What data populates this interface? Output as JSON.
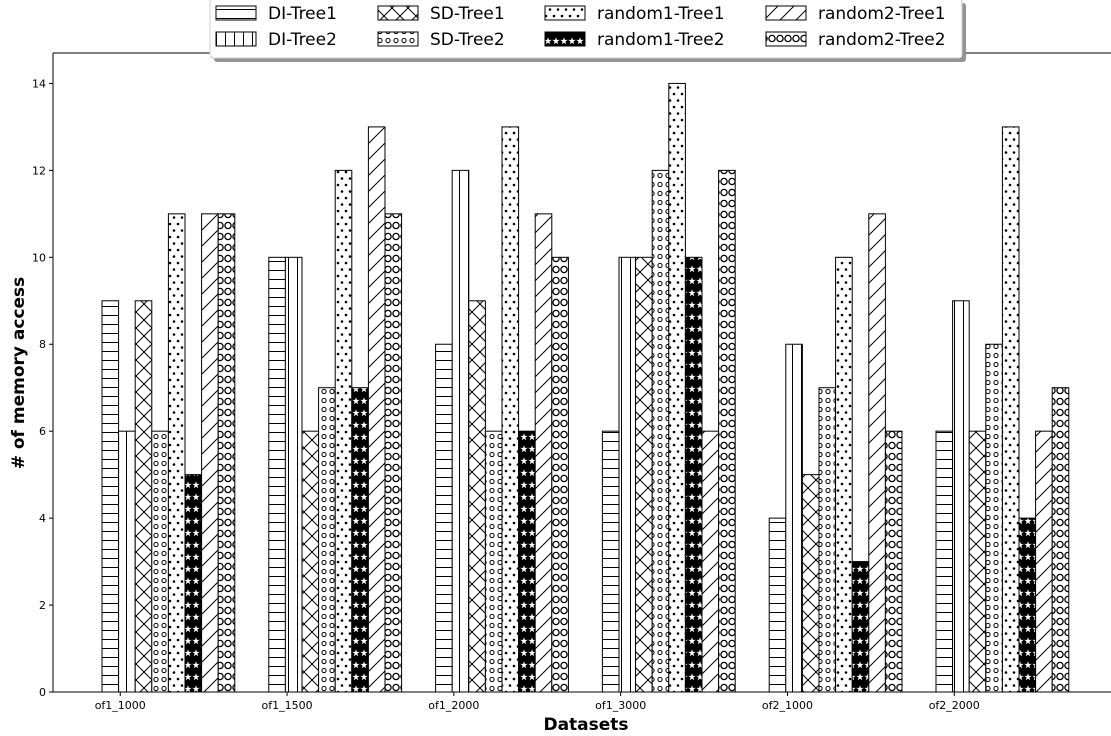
{
  "chart_data": {
    "type": "bar",
    "xlabel": "Datasets",
    "ylabel": "# of memory access",
    "ylim": [
      0,
      14.7
    ],
    "yticks": [
      0,
      2,
      4,
      6,
      8,
      10,
      12,
      14
    ],
    "categories": [
      "of1_1000",
      "of1_1500",
      "of1_2000",
      "of1_3000",
      "of2_1000",
      "of2_2000"
    ],
    "legend_position": "top-center",
    "grid": false,
    "series": [
      {
        "name": "DI-Tree1",
        "pattern": "horizontal-lines",
        "values": [
          9,
          10,
          8,
          6,
          4,
          6
        ]
      },
      {
        "name": "DI-Tree2",
        "pattern": "vertical-lines",
        "values": [
          6,
          10,
          12,
          10,
          8,
          9
        ]
      },
      {
        "name": "SD-Tree1",
        "pattern": "cross-diagonal",
        "values": [
          9,
          6,
          9,
          10,
          5,
          6
        ]
      },
      {
        "name": "SD-Tree2",
        "pattern": "small-circles",
        "values": [
          6,
          7,
          6,
          12,
          7,
          8
        ]
      },
      {
        "name": "random1-Tree1",
        "pattern": "dots",
        "values": [
          11,
          12,
          13,
          14,
          10,
          13
        ]
      },
      {
        "name": "random1-Tree2",
        "pattern": "stars",
        "values": [
          5,
          7,
          6,
          10,
          3,
          4
        ]
      },
      {
        "name": "random2-Tree1",
        "pattern": "diagonal-lines",
        "values": [
          11,
          13,
          11,
          6,
          11,
          6
        ]
      },
      {
        "name": "random2-Tree2",
        "pattern": "large-circles",
        "values": [
          11,
          11,
          10,
          12,
          6,
          7
        ]
      }
    ]
  }
}
